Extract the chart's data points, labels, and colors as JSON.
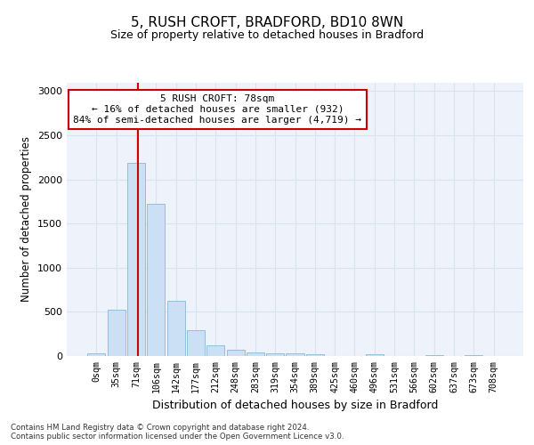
{
  "title_line1": "5, RUSH CROFT, BRADFORD, BD10 8WN",
  "title_line2": "Size of property relative to detached houses in Bradford",
  "xlabel": "Distribution of detached houses by size in Bradford",
  "ylabel": "Number of detached properties",
  "bar_labels": [
    "0sqm",
    "35sqm",
    "71sqm",
    "106sqm",
    "142sqm",
    "177sqm",
    "212sqm",
    "248sqm",
    "283sqm",
    "319sqm",
    "354sqm",
    "389sqm",
    "425sqm",
    "460sqm",
    "496sqm",
    "531sqm",
    "566sqm",
    "602sqm",
    "637sqm",
    "673sqm",
    "708sqm"
  ],
  "bar_values": [
    30,
    520,
    2190,
    1720,
    630,
    290,
    120,
    75,
    40,
    35,
    35,
    25,
    0,
    0,
    25,
    0,
    0,
    15,
    0,
    15,
    0
  ],
  "bar_color": "#cce0f5",
  "bar_edge_color": "#89b8d9",
  "grid_color": "#d8e4f0",
  "bg_color": "#eef2fa",
  "annotation_text": "5 RUSH CROFT: 78sqm\n← 16% of detached houses are smaller (932)\n84% of semi-detached houses are larger (4,719) →",
  "annotation_box_color": "#ffffff",
  "annotation_box_edge": "#cc0000",
  "ylim": [
    0,
    3100
  ],
  "yticks": [
    0,
    500,
    1000,
    1500,
    2000,
    2500,
    3000
  ],
  "footer_text": "Contains HM Land Registry data © Crown copyright and database right 2024.\nContains public sector information licensed under the Open Government Licence v3.0."
}
